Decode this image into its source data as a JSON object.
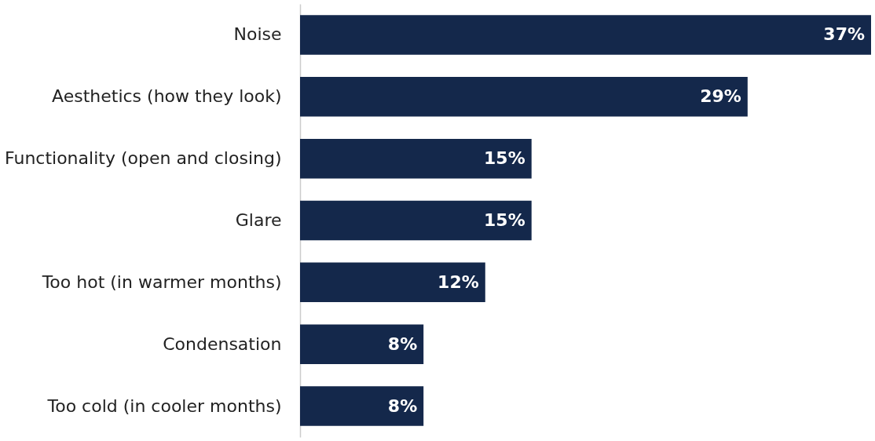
{
  "chart_data": {
    "type": "bar",
    "orientation": "horizontal",
    "categories": [
      "Noise",
      "Aesthetics (how they look)",
      "Functionality (open and closing)",
      "Glare",
      "Too hot (in warmer months)",
      "Condensation",
      "Too cold (in cooler months)"
    ],
    "values": [
      37,
      29,
      15,
      15,
      12,
      8,
      8
    ],
    "value_labels": [
      "37%",
      "29%",
      "15%",
      "15%",
      "12%",
      "8%",
      "8%"
    ],
    "color": "#14284b"
  }
}
